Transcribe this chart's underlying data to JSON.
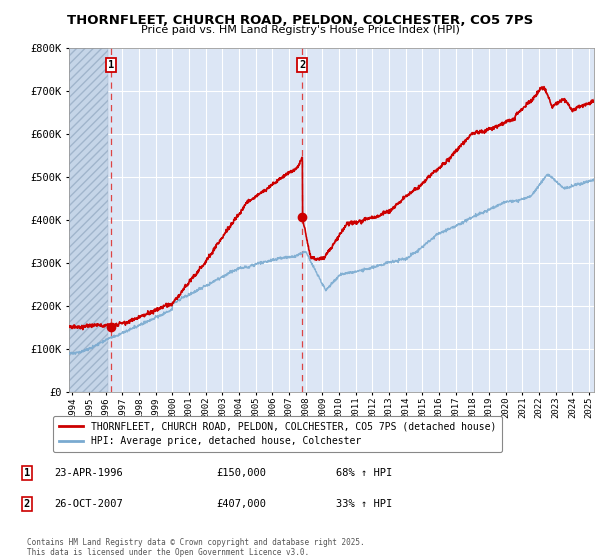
{
  "title": "THORNFLEET, CHURCH ROAD, PELDON, COLCHESTER, CO5 7PS",
  "subtitle": "Price paid vs. HM Land Registry's House Price Index (HPI)",
  "red_label": "THORNFLEET, CHURCH ROAD, PELDON, COLCHESTER, CO5 7PS (detached house)",
  "blue_label": "HPI: Average price, detached house, Colchester",
  "transaction1": {
    "label": "1",
    "date": "23-APR-1996",
    "price": "£150,000",
    "hpi": "68% ↑ HPI",
    "year": 1996.3
  },
  "transaction2": {
    "label": "2",
    "date": "26-OCT-2007",
    "price": "£407,000",
    "hpi": "33% ↑ HPI",
    "year": 2007.8
  },
  "footer": "Contains HM Land Registry data © Crown copyright and database right 2025.\nThis data is licensed under the Open Government Licence v3.0.",
  "ylim": [
    0,
    800000
  ],
  "xlim_start": 1993.8,
  "xlim_end": 2025.3,
  "background_color": "#ffffff",
  "plot_bg_color": "#dce6f5",
  "grid_color": "#ffffff",
  "red_color": "#cc0000",
  "blue_color": "#7aaad0",
  "dashed_color": "#dd4444",
  "hatch_end": 1996.15
}
